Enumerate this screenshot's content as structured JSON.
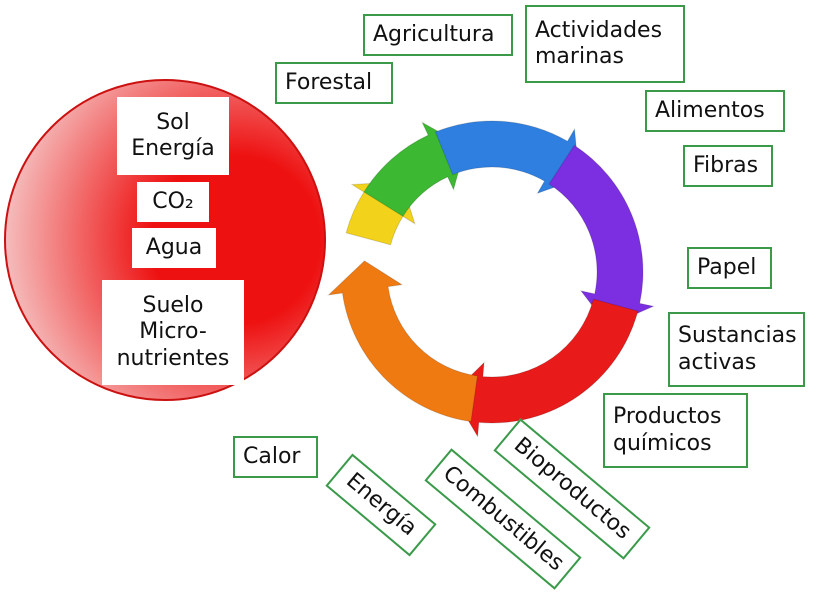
{
  "inputs": [
    {
      "lines": [
        "Sol",
        "Energía"
      ]
    },
    {
      "lines": [
        "CO₂"
      ]
    },
    {
      "lines": [
        "Agua"
      ]
    },
    {
      "lines": [
        "Suelo",
        "Micro-",
        "nutrientes"
      ]
    }
  ],
  "outputs": [
    {
      "lines": [
        "Forestal"
      ]
    },
    {
      "lines": [
        "Agricultura"
      ]
    },
    {
      "lines": [
        "Actividades",
        "marinas"
      ]
    },
    {
      "lines": [
        "Alimentos"
      ]
    },
    {
      "lines": [
        "Fibras"
      ]
    },
    {
      "lines": [
        "Papel"
      ]
    },
    {
      "lines": [
        "Sustancias",
        "activas"
      ]
    },
    {
      "lines": [
        "Productos",
        "químicos"
      ]
    },
    {
      "lines": [
        "Calor"
      ]
    },
    {
      "lines": [
        "Energía"
      ]
    },
    {
      "lines": [
        "Combustibles"
      ]
    },
    {
      "lines": [
        "Bioproductos"
      ]
    }
  ]
}
